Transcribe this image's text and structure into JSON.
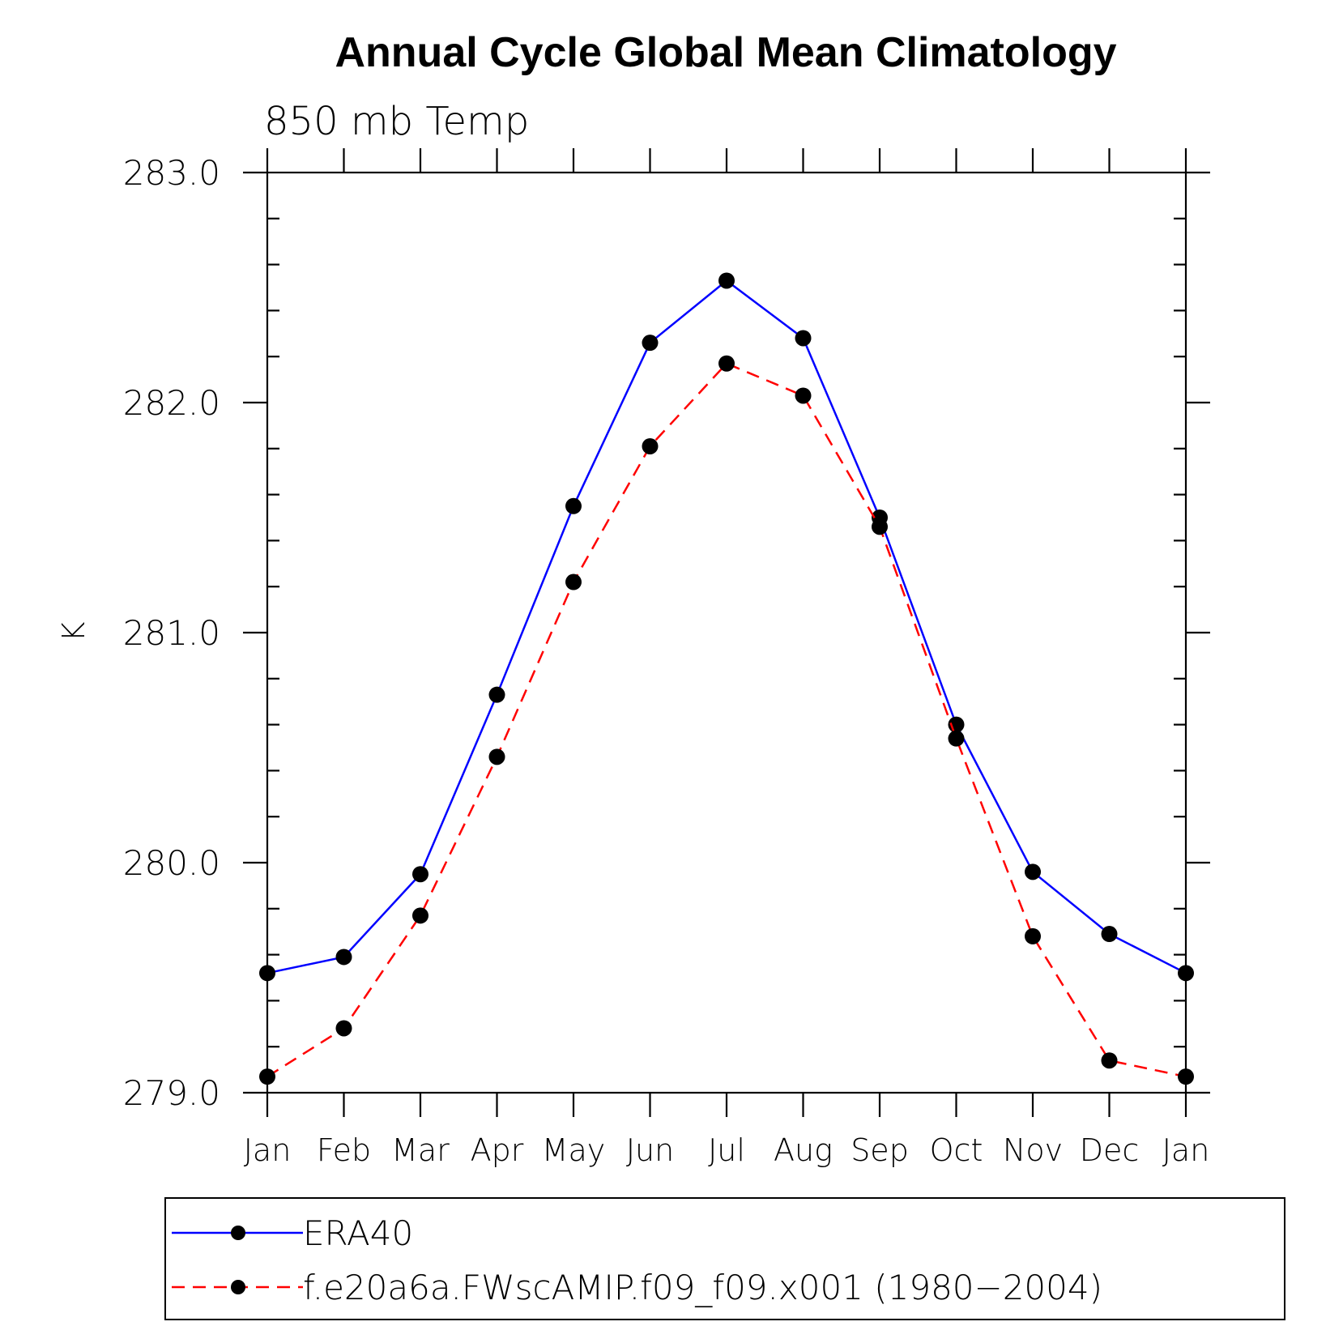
{
  "chart_data": {
    "type": "line",
    "title": "Annual Cycle Global Mean Climatology",
    "subtitle": "850 mb Temp",
    "xlabel": "",
    "ylabel": "K",
    "ylim": [
      279.0,
      283.0
    ],
    "yticks": [
      "279.0",
      "280.0",
      "281.0",
      "282.0",
      "283.0"
    ],
    "categories": [
      "Jan",
      "Feb",
      "Mar",
      "Apr",
      "May",
      "Jun",
      "Jul",
      "Aug",
      "Sep",
      "Oct",
      "Nov",
      "Dec",
      "Jan"
    ],
    "grid": false,
    "legend_position": "bottom",
    "series": [
      {
        "name": "ERA40",
        "color": "#0000ff",
        "dash": "solid",
        "marker": "filled-circle",
        "values": [
          279.52,
          279.59,
          279.95,
          280.73,
          281.55,
          282.26,
          282.53,
          282.28,
          281.5,
          280.6,
          279.96,
          279.69,
          279.52
        ]
      },
      {
        "name": "f.e20a6a.FWscAMIP.f09_f09.x001 (1980−2004)",
        "color": "#ff0000",
        "dash": "dashed",
        "marker": "filled-circle",
        "values": [
          279.07,
          279.28,
          279.77,
          280.46,
          281.22,
          281.81,
          282.17,
          282.03,
          281.46,
          280.54,
          279.68,
          279.14,
          279.07
        ]
      }
    ]
  }
}
